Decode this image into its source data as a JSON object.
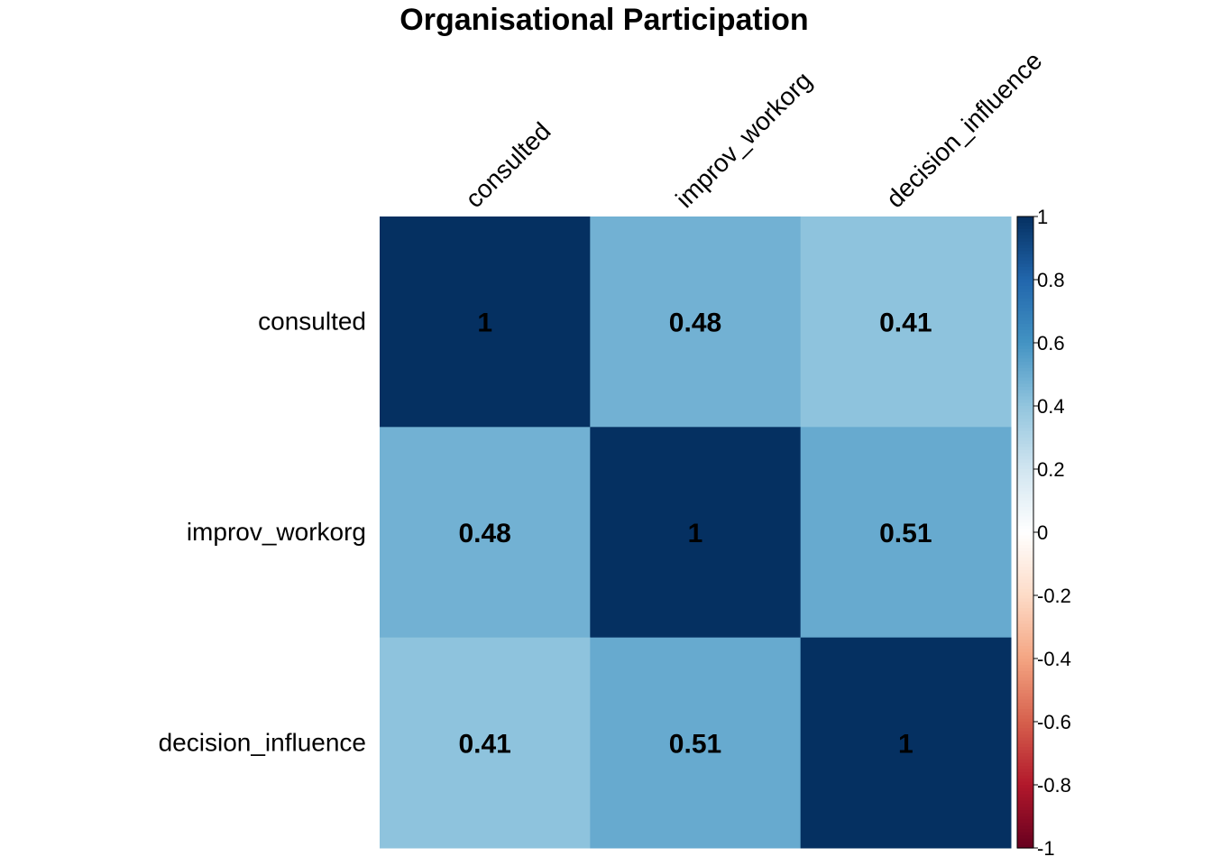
{
  "chart_data": {
    "type": "heatmap",
    "title": "Organisational Participation",
    "variables": [
      "consulted",
      "improv_workorg",
      "decision_influence"
    ],
    "matrix": [
      [
        1,
        0.48,
        0.41
      ],
      [
        0.48,
        1,
        0.51
      ],
      [
        0.41,
        0.51,
        1
      ]
    ],
    "value_labels": [
      [
        "1",
        "0.48",
        "0.41"
      ],
      [
        "0.48",
        "1",
        "0.51"
      ],
      [
        "0.41",
        "0.51",
        "1"
      ]
    ],
    "colorbar": {
      "range": [
        -1,
        1
      ],
      "ticks": [
        1,
        0.8,
        0.6,
        0.4,
        0.2,
        0,
        -0.2,
        -0.4,
        -0.6,
        -0.8,
        -1
      ],
      "tick_labels": [
        "1",
        "0.8",
        "0.6",
        "0.4",
        "0.2",
        "0",
        "-0.2",
        "-0.4",
        "-0.6",
        "-0.8",
        "-1"
      ],
      "palette": [
        "#67001F",
        "#B2182B",
        "#D6604D",
        "#F4A582",
        "#FDDBC7",
        "#FFFFFF",
        "#D1E5F0",
        "#92C5DE",
        "#4393C3",
        "#2166AC",
        "#053061"
      ]
    }
  }
}
